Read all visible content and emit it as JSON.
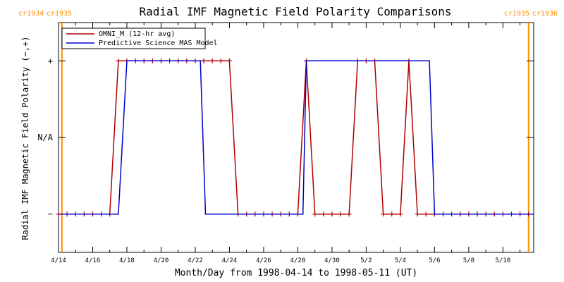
{
  "chart_data": {
    "type": "line",
    "title": "Radial IMF Magnetic Field Polarity Comparisons",
    "xlabel": "Month/Day from 1998-04-14 to 1998-05-11 (UT)",
    "ylabel": "Radial IMF Magnetic Field Polarity (−,+)",
    "x_unit": "day of April 1998 (May dates = 30 + day)",
    "xlim": [
      14,
      41.8
    ],
    "ylim": [
      -1.5,
      1.5
    ],
    "x_ticks": [
      14,
      16,
      18,
      20,
      22,
      24,
      26,
      28,
      30,
      32,
      34,
      36,
      38,
      40
    ],
    "x_tick_labels": [
      "4/14",
      "4/16",
      "4/18",
      "4/20",
      "4/22",
      "4/24",
      "4/26",
      "4/28",
      "4/30",
      "5/2",
      "5/4",
      "5/6",
      "5/8",
      "5/10"
    ],
    "y_ticks": [
      1,
      0,
      -1
    ],
    "y_tick_labels": [
      "+",
      "N/A",
      "−"
    ],
    "carrington_markers": [
      {
        "x": 14.2,
        "left_label": "cr1934",
        "right_label": "cr1935",
        "color": "#ff8c00"
      },
      {
        "x": 41.5,
        "left_label": "cr1935",
        "right_label": "cr1936",
        "color": "#ff8c00"
      }
    ],
    "legend_position": "top-left",
    "grid": false,
    "series": [
      {
        "name": "OMNI_M (12-hr avg)",
        "color": "#b00000",
        "markers": true,
        "x": [
          14.0,
          14.5,
          15.0,
          15.5,
          16.0,
          16.5,
          17.0,
          17.5,
          18.0,
          18.5,
          19.0,
          19.5,
          20.0,
          20.5,
          21.0,
          21.5,
          22.0,
          22.5,
          23.0,
          23.5,
          24.0,
          24.5,
          25.0,
          25.5,
          26.0,
          26.5,
          27.0,
          27.5,
          28.0,
          28.5,
          29.0,
          29.5,
          30.0,
          30.5,
          31.0,
          31.5,
          32.0,
          32.5,
          33.0,
          33.5,
          34.0,
          34.5,
          35.0,
          35.5,
          36.0,
          36.5,
          37.0,
          37.5,
          38.0,
          38.5,
          39.0,
          39.5,
          40.0,
          40.5,
          41.0,
          41.5
        ],
        "y": [
          -1,
          -1,
          -1,
          -1,
          -1,
          -1,
          -1,
          1,
          1,
          1,
          1,
          1,
          1,
          1,
          1,
          1,
          1,
          1,
          1,
          1,
          1,
          -1,
          -1,
          -1,
          -1,
          -1,
          -1,
          -1,
          -1,
          1,
          -1,
          -1,
          -1,
          -1,
          -1,
          1,
          1,
          1,
          -1,
          -1,
          -1,
          1,
          -1,
          -1,
          -1,
          -1,
          -1,
          -1,
          -1,
          -1,
          -1,
          -1,
          -1,
          -1,
          -1,
          -1
        ]
      },
      {
        "name": "Predictive Science MAS Model",
        "color": "#0000cc",
        "markers": false,
        "x": [
          14.0,
          17.5,
          18.0,
          22.3,
          22.6,
          28.3,
          28.5,
          35.7,
          36.0,
          41.8
        ],
        "y": [
          -1,
          -1,
          1,
          1,
          -1,
          -1,
          1,
          1,
          -1,
          -1
        ]
      }
    ]
  }
}
